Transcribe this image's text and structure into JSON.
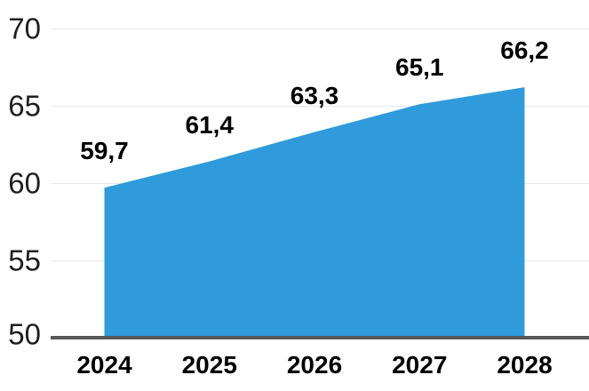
{
  "chart_data": {
    "type": "area",
    "categories": [
      "2024",
      "2025",
      "2026",
      "2027",
      "2028"
    ],
    "values": [
      59.7,
      61.4,
      63.3,
      65.1,
      66.2
    ],
    "point_labels": [
      "59,7",
      "61,4",
      "63,3",
      "65,1",
      "66,2"
    ],
    "title": "",
    "xlabel": "",
    "ylabel": "",
    "ylim": [
      50,
      70
    ],
    "yticks": [
      50,
      55,
      60,
      65,
      70
    ],
    "ytick_labels": [
      "50",
      "55",
      "60",
      "65",
      "70"
    ],
    "grid": true,
    "legend": "none",
    "decimal_separator": ",",
    "colors": {
      "area_fill": "#2F9BDB",
      "axis_line": "#595959",
      "gridline": "#E7E7E7",
      "text": "#000000"
    }
  }
}
